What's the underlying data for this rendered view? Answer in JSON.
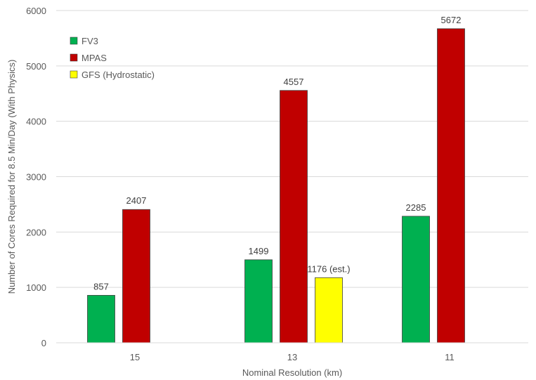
{
  "chart_data": {
    "type": "bar",
    "categories": [
      "15",
      "13",
      "11"
    ],
    "series": [
      {
        "name": "FV3",
        "color": "#00b050",
        "values": [
          857,
          1499,
          2285
        ],
        "labels": [
          "857",
          "1499",
          "2285"
        ]
      },
      {
        "name": "MPAS",
        "color": "#c00000",
        "values": [
          2407,
          4557,
          5672
        ],
        "labels": [
          "2407",
          "4557",
          "5672"
        ]
      },
      {
        "name": "GFS (Hydrostatic)",
        "color": "#ffff00",
        "values": [
          null,
          1176,
          null
        ],
        "labels": [
          "",
          "1176 (est.)",
          ""
        ]
      }
    ],
    "xlabel": "Nominal Resolution (km)",
    "ylabel": "Number of Cores Required for 8.5 Min/Day (With Physics)",
    "ylim": [
      0,
      6000
    ],
    "yticks": [
      "0",
      "1000",
      "2000",
      "3000",
      "4000",
      "5000",
      "6000"
    ],
    "grid": true,
    "legend_position": "top-left"
  }
}
